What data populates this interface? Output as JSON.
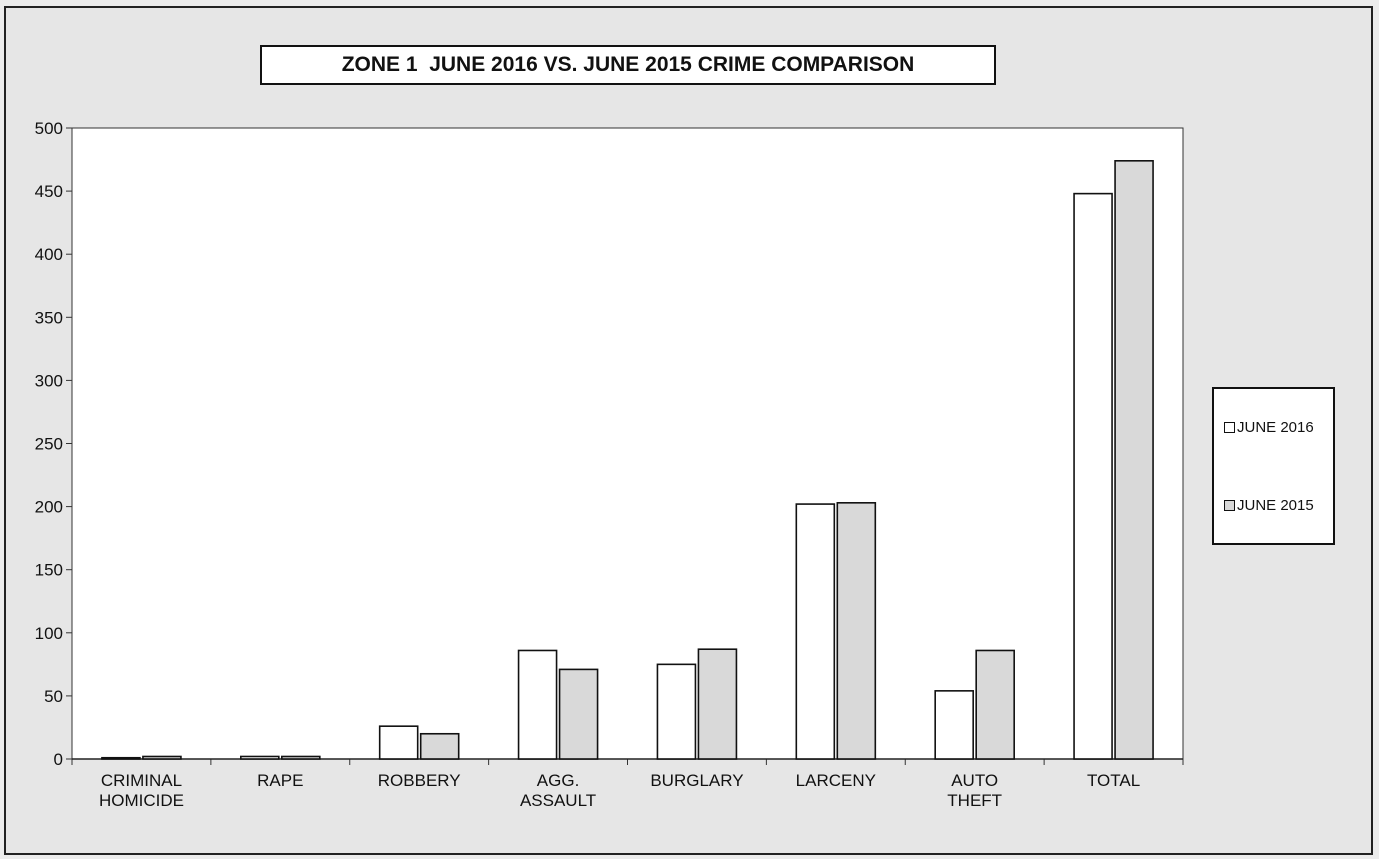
{
  "chart_data": {
    "type": "bar",
    "title": "ZONE 1  JUNE 2016 VS. JUNE 2015 CRIME COMPARISON",
    "categories": [
      [
        "CRIMINAL",
        "HOMICIDE"
      ],
      [
        "RAPE"
      ],
      [
        "ROBBERY"
      ],
      [
        "AGG.",
        "ASSAULT"
      ],
      [
        "BURGLARY"
      ],
      [
        "LARCENY"
      ],
      [
        "AUTO",
        "THEFT"
      ],
      [
        "TOTAL"
      ]
    ],
    "series": [
      {
        "name": "JUNE 2016",
        "values": [
          1,
          2,
          26,
          86,
          75,
          202,
          54,
          448
        ],
        "color": "#ffffff"
      },
      {
        "name": "JUNE 2015",
        "values": [
          2,
          2,
          20,
          71,
          87,
          203,
          86,
          474
        ],
        "color": "#d9d9d9"
      }
    ],
    "ylim": [
      0,
      500
    ],
    "yticks": [
      0,
      50,
      100,
      150,
      200,
      250,
      300,
      350,
      400,
      450,
      500
    ],
    "grid": false,
    "legend_position": "right",
    "xlabel": "",
    "ylabel": ""
  }
}
